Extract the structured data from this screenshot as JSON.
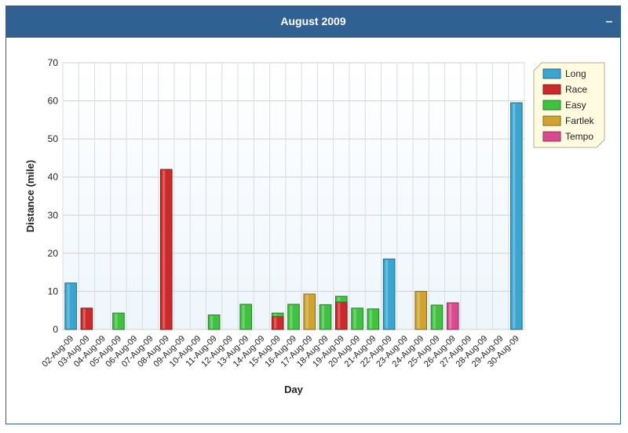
{
  "panel": {
    "title": "August 2009",
    "collapse_label": "–"
  },
  "chart_data": {
    "type": "bar",
    "stacked": true,
    "title": "",
    "xlabel": "Day",
    "ylabel": "Distance (mile)",
    "ylim": [
      0,
      70
    ],
    "yticks": [
      0,
      10,
      20,
      30,
      40,
      50,
      60,
      70
    ],
    "grid": true,
    "legend_position": "top-right",
    "categories": [
      "02-Aug-09",
      "03-Aug-09",
      "04-Aug-09",
      "05-Aug-09",
      "06-Aug-09",
      "07-Aug-09",
      "08-Aug-09",
      "09-Aug-09",
      "10-Aug-09",
      "11-Aug-09",
      "12-Aug-09",
      "13-Aug-09",
      "14-Aug-09",
      "15-Aug-09",
      "16-Aug-09",
      "17-Aug-09",
      "18-Aug-09",
      "19-Aug-09",
      "20-Aug-09",
      "21-Aug-09",
      "22-Aug-09",
      "23-Aug-09",
      "24-Aug-09",
      "25-Aug-09",
      "26-Aug-09",
      "27-Aug-09",
      "28-Aug-09",
      "29-Aug-09",
      "30-Aug-09"
    ],
    "series": [
      {
        "name": "Long",
        "color": "#3aa6cf",
        "values": [
          12.2,
          0,
          0,
          0,
          0,
          0,
          0,
          0,
          0,
          0,
          0,
          0,
          0,
          0,
          0,
          0,
          0,
          0,
          0,
          0,
          18.5,
          0,
          0,
          0,
          0,
          0,
          0,
          0,
          59.5
        ]
      },
      {
        "name": "Race",
        "color": "#cc2a2a",
        "values": [
          0,
          5.6,
          0,
          0,
          0,
          0,
          42.0,
          0,
          0,
          0,
          0,
          0,
          0,
          3.4,
          0,
          0,
          0,
          7.2,
          0,
          0,
          0,
          0,
          0,
          0,
          0,
          0,
          0,
          0,
          0
        ]
      },
      {
        "name": "Easy",
        "color": "#3fc23f",
        "values": [
          0,
          0,
          0,
          4.3,
          0,
          0,
          0,
          0,
          0,
          3.8,
          0,
          6.6,
          0,
          0.9,
          6.6,
          0,
          6.5,
          1.5,
          5.6,
          5.4,
          0,
          0,
          0,
          6.4,
          0,
          0,
          0,
          0,
          0
        ]
      },
      {
        "name": "Fartlek",
        "color": "#d0a22e",
        "values": [
          0,
          0,
          0,
          0,
          0,
          0,
          0,
          0,
          0,
          0,
          0,
          0,
          0,
          0,
          0,
          9.3,
          0,
          0,
          0,
          0,
          0,
          0,
          10.0,
          0,
          0,
          0,
          0,
          0,
          0
        ]
      },
      {
        "name": "Tempo",
        "color": "#d94a8e",
        "values": [
          0,
          0,
          0,
          0,
          0,
          0,
          0,
          0,
          0,
          0,
          0,
          0,
          0,
          0,
          0,
          0,
          0,
          0,
          0,
          0,
          0,
          0,
          0,
          0,
          7.0,
          0,
          0,
          0,
          0
        ]
      }
    ]
  }
}
